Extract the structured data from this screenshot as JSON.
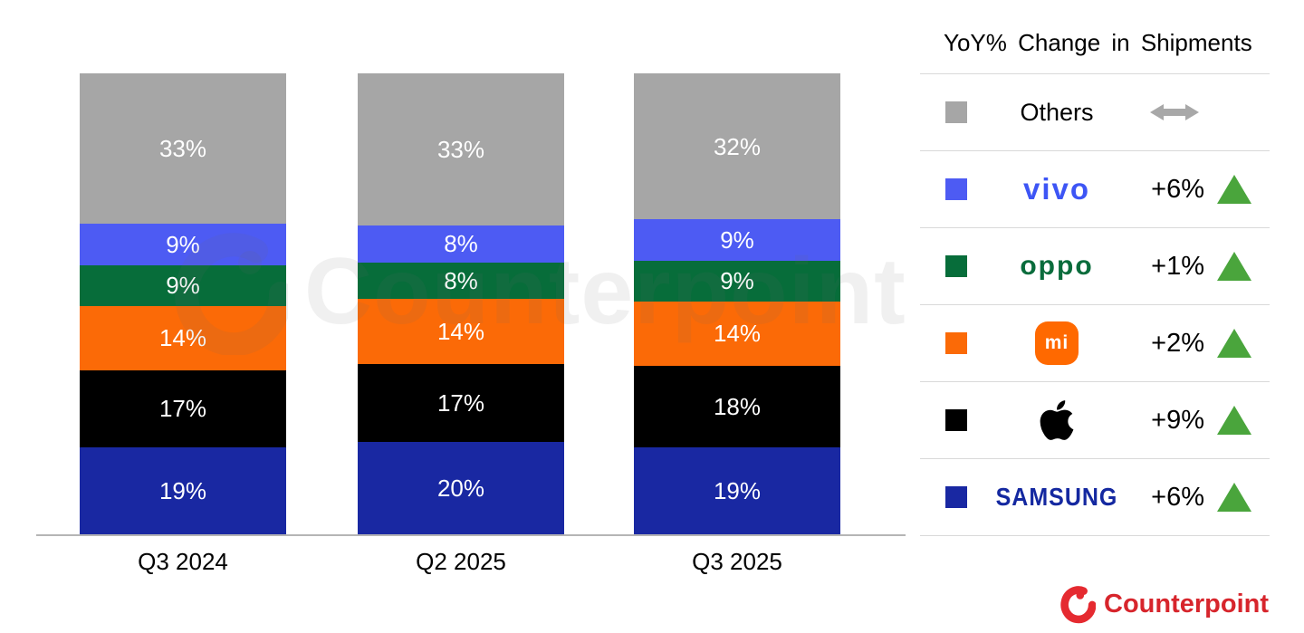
{
  "chart_data": {
    "type": "bar",
    "stacked": true,
    "title": "",
    "xlabel": "",
    "ylabel": "",
    "value_suffix": "%",
    "legend_position": "right",
    "categories": [
      "Q3 2024",
      "Q2 2025",
      "Q3 2025"
    ],
    "series": [
      {
        "name": "Samsung",
        "color": "#1928a2",
        "values": [
          19,
          20,
          19
        ]
      },
      {
        "name": "Apple",
        "color": "#000000",
        "values": [
          17,
          17,
          18
        ]
      },
      {
        "name": "Xiaomi",
        "color": "#fb6a07",
        "values": [
          14,
          14,
          14
        ]
      },
      {
        "name": "OPPO",
        "color": "#076d3a",
        "values": [
          9,
          8,
          9
        ]
      },
      {
        "name": "vivo",
        "color": "#4d5bf3",
        "values": [
          9,
          8,
          9
        ]
      },
      {
        "name": "Others",
        "color": "#a6a6a6",
        "values": [
          33,
          33,
          32
        ]
      }
    ]
  },
  "legend": {
    "title": "YoY% Change in Shipments",
    "up_color": "#4aa53c",
    "flat_color": "#a8a8a8",
    "rows": [
      {
        "brand": "Others",
        "logo": "others-label",
        "logo_text": "Others",
        "swatch": "#a6a6a6",
        "change": "",
        "direction": "flat"
      },
      {
        "brand": "vivo",
        "logo": "vivo-wordmark",
        "logo_text": "vivo",
        "swatch": "#4d5bf3",
        "change": "+6%",
        "direction": "up"
      },
      {
        "brand": "OPPO",
        "logo": "oppo-wordmark",
        "logo_text": "oppo",
        "swatch": "#076d3a",
        "change": "+1%",
        "direction": "up"
      },
      {
        "brand": "Xiaomi",
        "logo": "xiaomi-mi-icon",
        "logo_text": "mi",
        "swatch": "#fb6a07",
        "change": "+2%",
        "direction": "up"
      },
      {
        "brand": "Apple",
        "logo": "apple-icon",
        "logo_text": "",
        "swatch": "#000000",
        "change": "+9%",
        "direction": "up"
      },
      {
        "brand": "Samsung",
        "logo": "samsung-wordmark",
        "logo_text": "SAMSUNG",
        "swatch": "#1928a2",
        "change": "+6%",
        "direction": "up"
      }
    ]
  },
  "watermark": {
    "text": "Counterpoint"
  },
  "footer": {
    "brand": "Counterpoint"
  }
}
